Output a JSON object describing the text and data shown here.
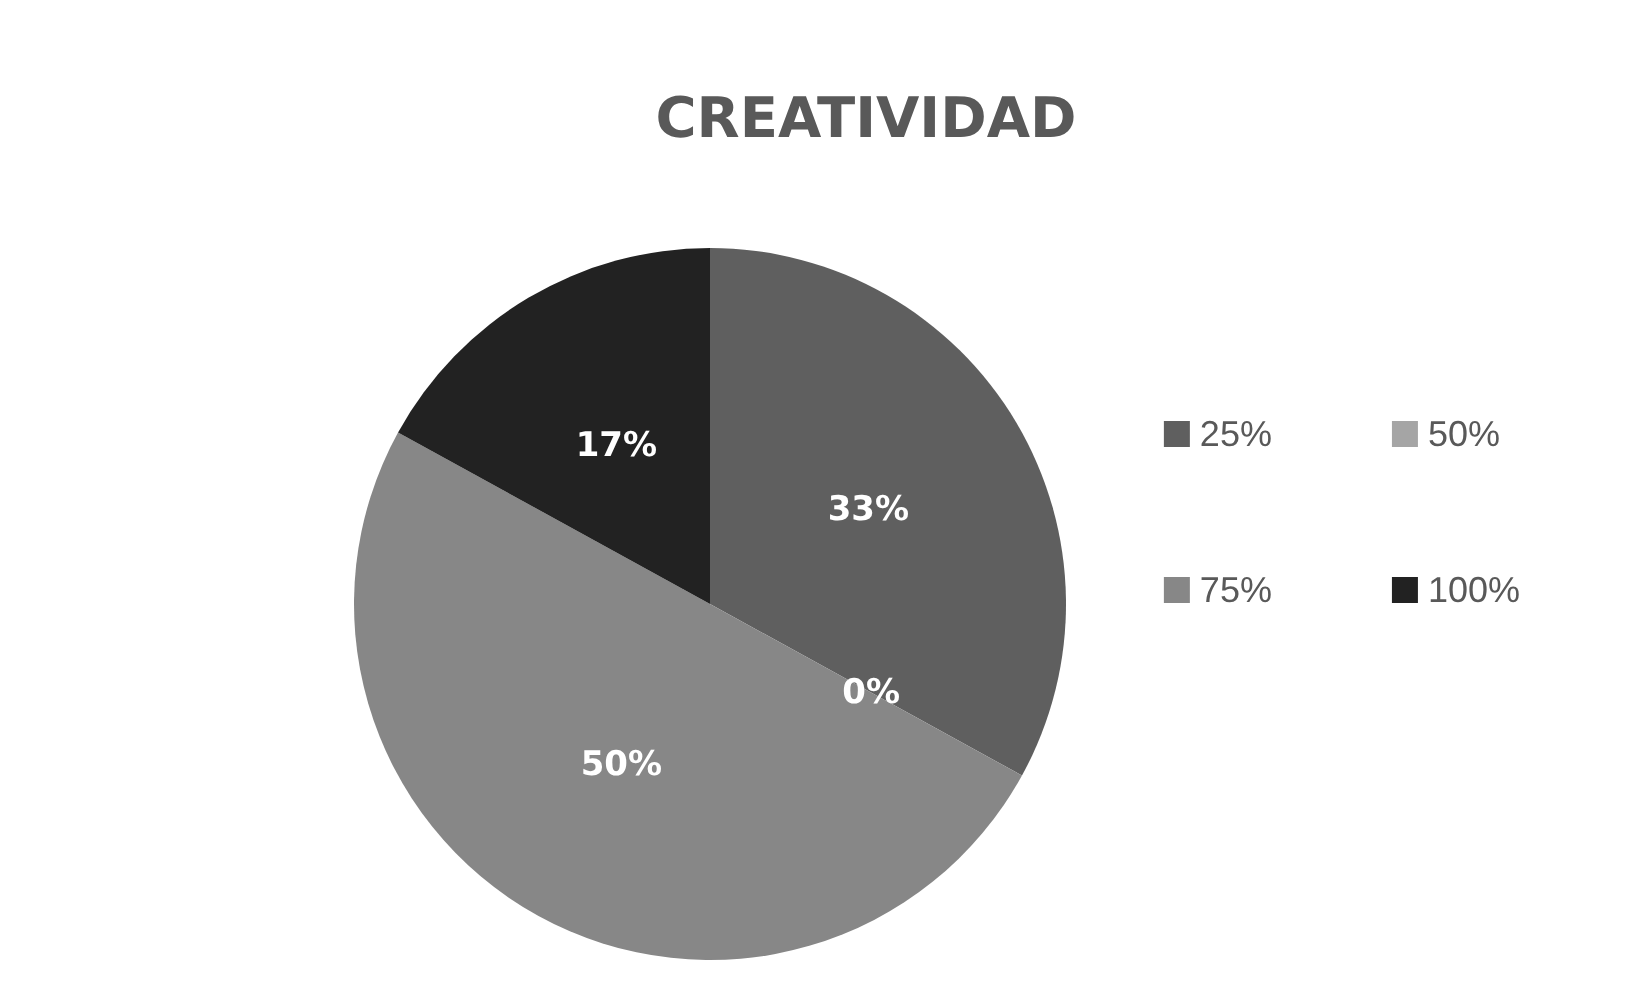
{
  "chart_data": {
    "type": "pie",
    "title": "CREATIVIDAD",
    "categories": [
      "25%",
      "50%",
      "75%",
      "100%"
    ],
    "values": [
      33,
      0,
      50,
      17
    ],
    "colors": [
      "#5f5f5f",
      "#a5a5a5",
      "#878787",
      "#222222"
    ],
    "value_labels": [
      "33%",
      "0%",
      "50%",
      "17%"
    ],
    "legend": "right"
  }
}
